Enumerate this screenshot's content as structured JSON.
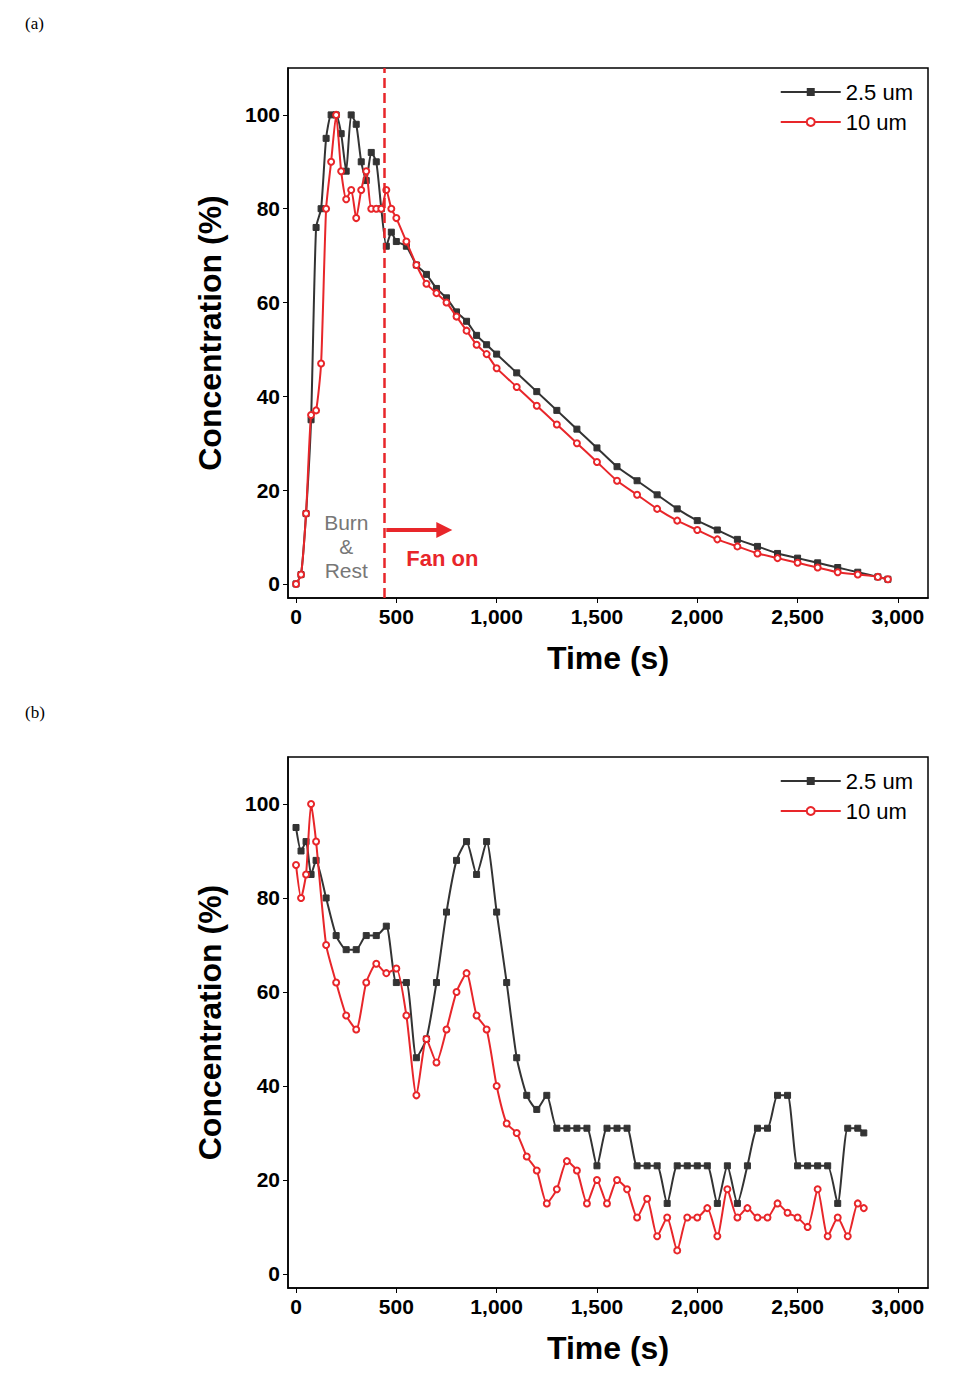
{
  "chart_data": [
    {
      "type": "line",
      "title": "(a)",
      "x_label": "Time (s)",
      "y_label": "Concentration (%)",
      "x": [
        0,
        25,
        50,
        75,
        100,
        125,
        150,
        175,
        200,
        225,
        250,
        275,
        300,
        325,
        350,
        375,
        400,
        425,
        450,
        475,
        500,
        550,
        600,
        650,
        700,
        750,
        800,
        850,
        900,
        950,
        1000,
        1100,
        1200,
        1300,
        1400,
        1500,
        1600,
        1700,
        1800,
        1900,
        2000,
        2100,
        2200,
        2300,
        2400,
        2500,
        2600,
        2700,
        2800,
        2900,
        2950
      ],
      "series": [
        {
          "name": "2.5 um",
          "color": "#333333",
          "marker": "square",
          "values": [
            0,
            2,
            15,
            35,
            76,
            80,
            95,
            100,
            100,
            96,
            88,
            100,
            98,
            90,
            86,
            92,
            90,
            80,
            72,
            75,
            73,
            72,
            68,
            66,
            63,
            61,
            58,
            56,
            53,
            51,
            49,
            45,
            41,
            37,
            33,
            29,
            25,
            22,
            19,
            16,
            13.5,
            11.5,
            9.5,
            8,
            6.5,
            5.5,
            4.5,
            3.5,
            2.5,
            1.5,
            1
          ]
        },
        {
          "name": "10 um",
          "color": "#e8262a",
          "marker": "circle",
          "values": [
            0,
            2,
            15,
            36,
            37,
            47,
            80,
            90,
            100,
            88,
            82,
            84,
            78,
            84,
            88,
            80,
            80,
            80,
            84,
            80,
            78,
            73,
            68,
            64,
            62,
            60,
            57,
            54,
            51,
            49,
            46,
            42,
            38,
            34,
            30,
            26,
            22,
            19,
            16,
            13.5,
            11.5,
            9.5,
            8,
            6.5,
            5.5,
            4.5,
            3.5,
            2.5,
            2,
            1.5,
            1
          ]
        }
      ],
      "xlim": [
        -40,
        3150
      ],
      "ylim": [
        -3,
        110
      ],
      "xticks": [
        0,
        500,
        {
          "value": 1000,
          "label": "1,000"
        },
        {
          "value": 1500,
          "label": "1,500"
        },
        {
          "value": 2000,
          "label": "2,000"
        },
        {
          "value": 2500,
          "label": "2,500"
        },
        {
          "value": 3000,
          "label": "3,000"
        }
      ],
      "yticks": [
        0,
        20,
        40,
        60,
        80,
        100
      ],
      "grid": false,
      "legend": "top right",
      "annotations": [
        {
          "text": "Burn\n&\nRest"
        },
        {
          "text": "Fan on",
          "x": 440
        }
      ]
    },
    {
      "type": "line",
      "title": "(b)",
      "x_label": "Time (s)",
      "y_label": "Concentration (%)",
      "x": [
        0,
        25,
        50,
        75,
        100,
        150,
        200,
        250,
        300,
        350,
        400,
        450,
        500,
        550,
        600,
        650,
        700,
        750,
        800,
        850,
        900,
        950,
        1000,
        1050,
        1100,
        1150,
        1200,
        1250,
        1300,
        1350,
        1400,
        1450,
        1500,
        1550,
        1600,
        1650,
        1700,
        1750,
        1800,
        1850,
        1900,
        1950,
        2000,
        2050,
        2100,
        2150,
        2200,
        2250,
        2300,
        2350,
        2400,
        2450,
        2500,
        2550,
        2600,
        2650,
        2700,
        2750,
        2800,
        2830
      ],
      "series": [
        {
          "name": "2.5 um",
          "color": "#333333",
          "marker": "square",
          "values": [
            95,
            90,
            92,
            85,
            88,
            80,
            72,
            69,
            69,
            72,
            72,
            74,
            62,
            62,
            46,
            50,
            62,
            77,
            88,
            92,
            85,
            92,
            77,
            62,
            46,
            38,
            35,
            38,
            31,
            31,
            31,
            31,
            23,
            31,
            31,
            31,
            23,
            23,
            23,
            15,
            23,
            23,
            23,
            23,
            15,
            23,
            15,
            23,
            31,
            31,
            38,
            38,
            23,
            23,
            23,
            23,
            15,
            31,
            31,
            30
          ]
        },
        {
          "name": "10 um",
          "color": "#e8262a",
          "marker": "circle",
          "values": [
            87,
            80,
            85,
            100,
            92,
            70,
            62,
            55,
            52,
            62,
            66,
            64,
            65,
            55,
            38,
            50,
            45,
            52,
            60,
            64,
            55,
            52,
            40,
            32,
            30,
            25,
            22,
            15,
            18,
            24,
            22,
            15,
            20,
            15,
            20,
            18,
            12,
            16,
            8,
            12,
            5,
            12,
            12,
            14,
            8,
            18,
            12,
            14,
            12,
            12,
            15,
            13,
            12,
            10,
            18,
            8,
            12,
            8,
            15,
            14
          ]
        }
      ],
      "xlim": [
        -40,
        3150
      ],
      "ylim": [
        -3,
        110
      ],
      "xticks": [
        0,
        500,
        {
          "value": 1000,
          "label": "1,000"
        },
        {
          "value": 1500,
          "label": "1,500"
        },
        {
          "value": 2000,
          "label": "2,000"
        },
        {
          "value": 2500,
          "label": "2,500"
        },
        {
          "value": 3000,
          "label": "3,000"
        }
      ],
      "yticks": [
        0,
        20,
        40,
        60,
        80,
        100
      ],
      "grid": false,
      "legend": "top right"
    }
  ]
}
